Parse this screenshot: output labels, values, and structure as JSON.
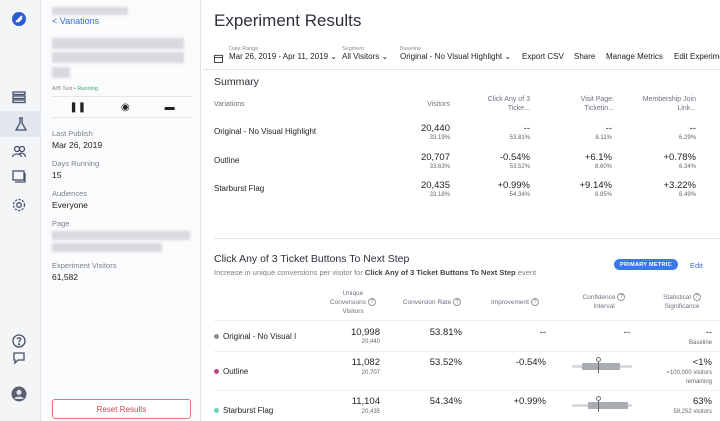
{
  "sidebar": {
    "back_label": "< Variations",
    "status_type": "A/B Test",
    "status_sep": "•",
    "status_state": "Running",
    "controls": {
      "pause": "❚❚",
      "preview": "◉",
      "archive": "▬"
    },
    "fields": [
      {
        "label": "Last Publish",
        "value": "Mar 26, 2019"
      },
      {
        "label": "Days Running",
        "value": "15"
      },
      {
        "label": "Audiences",
        "value": "Everyone"
      },
      {
        "label": "Page",
        "value": ""
      },
      {
        "label": "Experiment Visitors",
        "value": "61,582"
      }
    ],
    "reset_label": "Reset Results"
  },
  "rail_icons": [
    "logo-icon",
    "list-icon",
    "flask-icon",
    "audience-icon",
    "pages-icon",
    "settings-icon",
    "help-icon",
    "feedback-icon",
    "avatar"
  ],
  "header": {
    "title": "Experiment Results"
  },
  "toolbar": {
    "date_range_label": "Date Range",
    "date_range_value": "Mar 26, 2019 - Apr 11, 2019",
    "segment_label": "Segment",
    "segment_value": "All Visitors",
    "baseline_label": "Baseline",
    "baseline_value": "Original - No Visual Highlight",
    "export_label": "Export CSV",
    "share_label": "Share",
    "manage_label": "Manage Metrics",
    "edit_label": "Edit Experime"
  },
  "summary": {
    "title": "Summary",
    "headers": {
      "variations": "Variations",
      "visitors": "Visitors",
      "col1": [
        "Click Any of 3",
        "Ticke..."
      ],
      "col2": [
        "Visit Page:",
        "Ticketin..."
      ],
      "col3": [
        "Membership Join",
        "Link..."
      ]
    },
    "rows": [
      {
        "name": "Original - No Visual Highlight",
        "visitors": "20,440",
        "visitors_pct": "33.19%",
        "m1": "--",
        "m1_sub": "53.81%",
        "m2": "--",
        "m2_sub": "8.11%",
        "m3": "--",
        "m3_sub": "6.29%"
      },
      {
        "name": "Outline",
        "visitors": "20,707",
        "visitors_pct": "33.63%",
        "m1": "-0.54%",
        "m1_sub": "53.52%",
        "m2": "+6.1%",
        "m2_sub": "8.60%",
        "m3": "+0.78%",
        "m3_sub": "6.34%"
      },
      {
        "name": "Starburst Flag",
        "visitors": "20,435",
        "visitors_pct": "33.18%",
        "m1": "+0.99%",
        "m1_sub": "54.34%",
        "m2": "+9.14%",
        "m2_sub": "8.85%",
        "m3": "+3.22%",
        "m3_sub": "6.49%"
      }
    ]
  },
  "metric": {
    "title": "Click Any of 3 Ticket Buttons To Next Step",
    "subtitle_prefix": "Increase in unique conversions per visitor for",
    "subtitle_bold": "Click Any of 3 Ticket Buttons To Next Step",
    "subtitle_suffix": "event",
    "badge": "PRIMARY METRIC",
    "edit": "Edit",
    "headers": {
      "conversions": [
        "Unique",
        "Conversions",
        "Visitors"
      ],
      "rate": "Conversion Rate",
      "improvement": "Improvement",
      "confidence": [
        "Confidence",
        "Interval"
      ],
      "significance": [
        "Statistical",
        "Significance"
      ]
    },
    "rows": [
      {
        "name": "Original - No Visual I",
        "dot_color": "#8a8d93",
        "conversions": "10,998",
        "visitors": "20,440",
        "rate": "53.81%",
        "improvement": "--",
        "interval": "--",
        "significance": "--",
        "sig_sub": "Baseline",
        "sig_sub2": ""
      },
      {
        "name": "Outline",
        "dot_color": "#c0457f",
        "conversions": "11,082",
        "visitors": "20,707",
        "rate": "53.52%",
        "improvement": "-0.54%",
        "interval": "",
        "significance": "<1%",
        "sig_sub": "≈100,000 visitors",
        "sig_sub2": "remaining"
      },
      {
        "name": "Starburst Flag",
        "dot_color": "#6fd0c0",
        "conversions": "11,104",
        "visitors": "20,435",
        "rate": "54.34%",
        "improvement": "+0.99%",
        "interval": "",
        "significance": "63%",
        "sig_sub": "59,252 visitors",
        "sig_sub2": ""
      }
    ]
  }
}
